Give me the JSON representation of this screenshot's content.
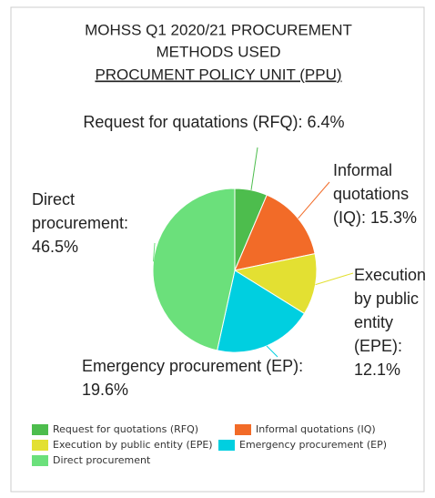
{
  "chart_data": {
    "type": "pie",
    "title": [
      "MOHSS Q1 2020/21 PROCUREMENT",
      "METHODS USED",
      "PROCUMENT POLICY UNIT (PPU)"
    ],
    "categories": [
      "Request for quotations (RFQ)",
      "Informal quotations (IQ)",
      "Execution by public entity (EPE)",
      "Emergency procurement (EP)",
      "Direct procurement"
    ],
    "values": [
      6.4,
      15.3,
      12.1,
      19.6,
      46.5
    ],
    "value_labels": [
      "Request for quatations (RFQ): 6.4%",
      "Informal quotations (IQ): 15.3%",
      "Execution by public entity (EPE): 12.1%",
      "Emergency procurement (EP): 19.6%",
      "Direct procurement: 46.5%"
    ],
    "colors": [
      "#4dbd4d",
      "#f26b28",
      "#e3e032",
      "#00cfe0",
      "#6be07b"
    ],
    "legend": "bottom"
  }
}
